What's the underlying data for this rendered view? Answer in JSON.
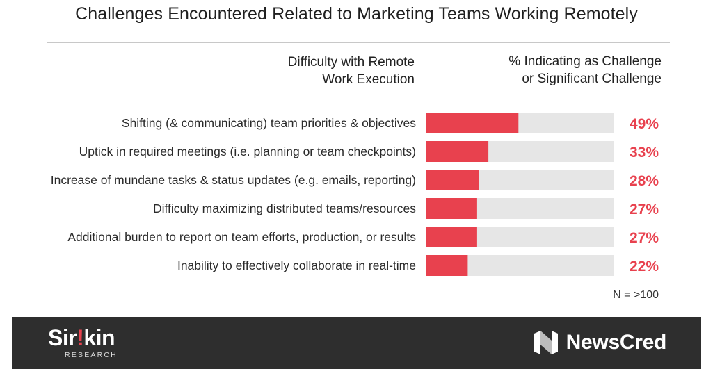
{
  "title": "Challenges Encountered Related to Marketing Teams Working Remotely",
  "headers": {
    "left_line1": "Difficulty with Remote",
    "left_line2": "Work Execution",
    "right_line1": "% Indicating as Challenge",
    "right_line2": "or Significant Challenge"
  },
  "colors": {
    "bar": "#e8414e",
    "track": "#e6e6e6",
    "value_text": "#e8414e"
  },
  "chart_data": {
    "type": "bar",
    "orientation": "horizontal",
    "categories": [
      "Shifting (& communicating) team priorities & objectives",
      "Uptick in required meetings (i.e. planning or team checkpoints)",
      "Increase of mundane tasks & status updates (e.g. emails, reporting)",
      "Difficulty maximizing distributed teams/resources",
      "Additional burden to report on team efforts, production, or results",
      "Inability to effectively collaborate in real-time"
    ],
    "values": [
      49,
      33,
      28,
      27,
      27,
      22
    ],
    "value_labels": [
      "49%",
      "33%",
      "28%",
      "27%",
      "27%",
      "22%"
    ],
    "xlim": [
      0,
      100
    ],
    "grid": false,
    "legend": "none"
  },
  "note": "N = >100",
  "footer": {
    "left_brand_prefix": "Sir",
    "left_brand_mark": "!",
    "left_brand_suffix": "kin",
    "left_brand_sub": "RESEARCH",
    "right_brand_icon": "newscred-logo-icon",
    "right_brand": "NewsCred"
  }
}
